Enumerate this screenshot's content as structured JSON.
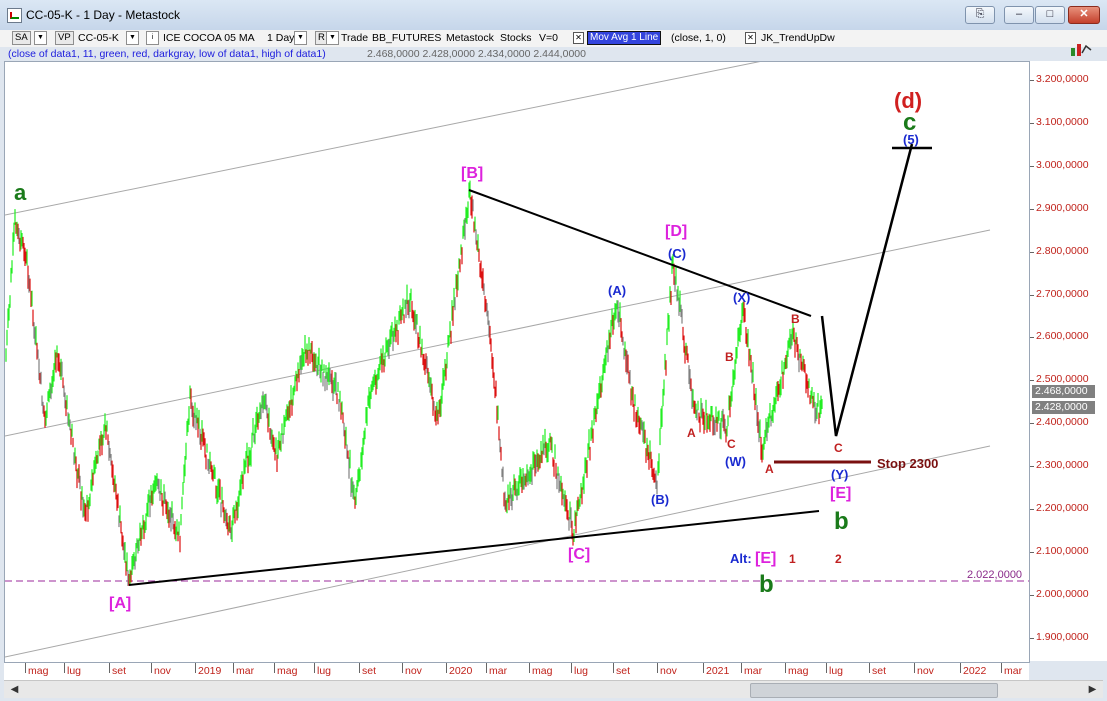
{
  "window": {
    "title": "CC-05-K - 1 Day - Metastock",
    "buttons": {
      "restore_down": "⎘",
      "minimize": "–",
      "maximize": "□",
      "close": "✕"
    }
  },
  "toolbar": {
    "sa": "SA",
    "vp": "VP",
    "symbol": "CC-05-K",
    "name": "ICE COCOA 05 MA",
    "interval": "1 Day",
    "mode": "R",
    "trade": "Trade",
    "account": "BB_FUTURES",
    "platform": "Metastock",
    "type": "Stocks",
    "v": "V=0",
    "indicator": "Mov Avg 1 Line",
    "indicator_params": "(close,  1,  0)",
    "trendtool": "JK_TrendUpDw"
  },
  "legend": {
    "params": "(close of data1,  11,  green,  red,  darkgray,  low of data1,  high of data1)",
    "values": "2.468,0000  2.428,0000  2.434,0000  2.444,0000"
  },
  "price_axis": {
    "labels": [
      "3.200,0000",
      "3.100,0000",
      "3.000,0000",
      "2.900,0000",
      "2.800,0000",
      "2.700,0000",
      "2.600,0000",
      "2.500,0000",
      "2.400,0000",
      "2.300,0000",
      "2.200,0000",
      "2.100,0000",
      "2.000,0000",
      "1.900,0000"
    ],
    "last_close": "2.468,0000",
    "last_low": "2.428,0000"
  },
  "date_axis": {
    "labels": [
      "mag",
      "lug",
      "set",
      "nov",
      "2019",
      "mar",
      "mag",
      "lug",
      "set",
      "nov",
      "2020",
      "mar",
      "mag",
      "lug",
      "set",
      "nov",
      "2021",
      "mar",
      "mag",
      "lug",
      "set",
      "nov",
      "2022",
      "mar"
    ]
  },
  "annotations": {
    "a": "a",
    "B_bracket": "[B]",
    "D_bracket": "[D]",
    "A_bracket": "[A]",
    "C_bracket": "[C]",
    "E_bracket": "[E]",
    "paren_A": "(A)",
    "paren_B": "(B)",
    "paren_C": "(C)",
    "paren_X": "(X)",
    "paren_W": "(W)",
    "paren_Y": "(Y)",
    "paren_5": "(5)",
    "d_paren": "(d)",
    "c": "c",
    "b": "b",
    "alt": "Alt:",
    "alt_E": "[E]",
    "alt_b": "b",
    "small_A1": "A",
    "small_B1": "B",
    "small_C1": "C",
    "small_A2": "A",
    "small_B2": "B",
    "small_C2": "C",
    "one": "1",
    "two": "2",
    "stop": "Stop 2300",
    "level_line": "2.022,0000"
  },
  "colors": {
    "green_bar": "#22ee22",
    "red_bar": "#dd1111",
    "gray_bar": "#808080",
    "magenta": "#dd22dd",
    "blue": "#1a2ad0",
    "darkred": "#b02020",
    "darkgreen": "#1a7a1a",
    "stop": "#7a1010"
  }
}
